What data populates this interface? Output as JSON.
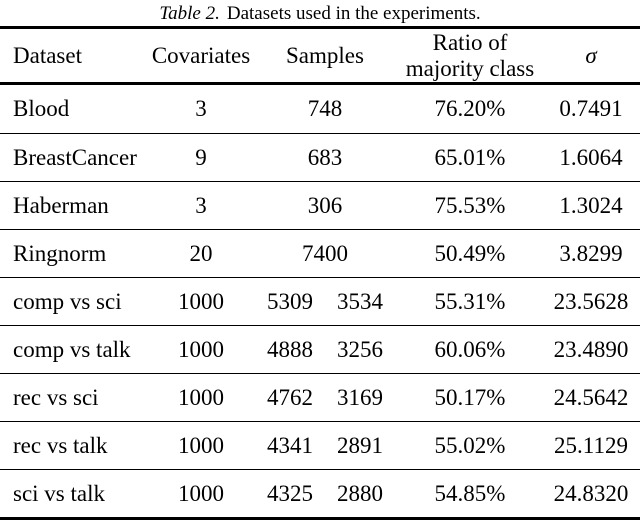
{
  "caption": {
    "label": "Table 2.",
    "text": "Datasets used in the experiments."
  },
  "table": {
    "columns": {
      "dataset": "Dataset",
      "covariates": "Covariates",
      "samples": "Samples",
      "ratio": "Ratio of majority class",
      "sigma": "σ"
    },
    "rows": [
      {
        "dataset": "Blood",
        "covariates": "3",
        "samples": [
          "748"
        ],
        "ratio": "76.20%",
        "sigma": "0.7491"
      },
      {
        "dataset": "BreastCancer",
        "covariates": "9",
        "samples": [
          "683"
        ],
        "ratio": "65.01%",
        "sigma": "1.6064"
      },
      {
        "dataset": "Haberman",
        "covariates": "3",
        "samples": [
          "306"
        ],
        "ratio": "75.53%",
        "sigma": "1.3024"
      },
      {
        "dataset": "Ringnorm",
        "covariates": "20",
        "samples": [
          "7400"
        ],
        "ratio": "50.49%",
        "sigma": "3.8299"
      },
      {
        "dataset": "comp vs sci",
        "covariates": "1000",
        "samples": [
          "5309",
          "3534"
        ],
        "ratio": "55.31%",
        "sigma": "23.5628"
      },
      {
        "dataset": "comp vs talk",
        "covariates": "1000",
        "samples": [
          "4888",
          "3256"
        ],
        "ratio": "60.06%",
        "sigma": "23.4890"
      },
      {
        "dataset": "rec vs sci",
        "covariates": "1000",
        "samples": [
          "4762",
          "3169"
        ],
        "ratio": "50.17%",
        "sigma": "24.5642"
      },
      {
        "dataset": "rec vs talk",
        "covariates": "1000",
        "samples": [
          "4341",
          "2891"
        ],
        "ratio": "55.02%",
        "sigma": "25.1129"
      },
      {
        "dataset": "sci vs talk",
        "covariates": "1000",
        "samples": [
          "4325",
          "2880"
        ],
        "ratio": "54.85%",
        "sigma": "24.8320"
      }
    ]
  }
}
